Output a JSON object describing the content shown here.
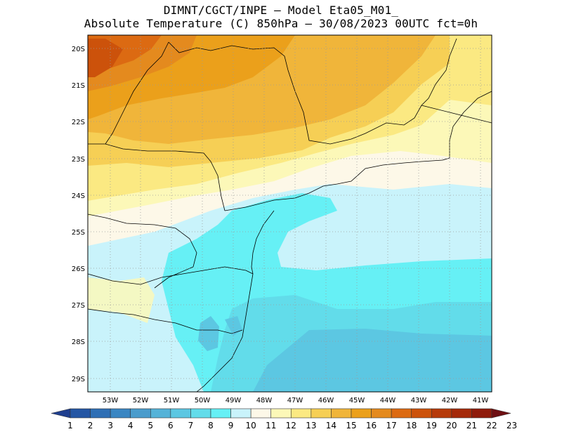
{
  "header": {
    "line1": "DIMNT/CGCT/INPE —  Model Eta05_M01_",
    "line2": "Absolute Temperature (C) 850hPa —  30/08/2023 00UTC fct=0h"
  },
  "map": {
    "lat_labels": [
      "20S",
      "21S",
      "22S",
      "23S",
      "24S",
      "25S",
      "26S",
      "27S",
      "28S",
      "29S"
    ],
    "lon_labels": [
      "53W",
      "52W",
      "51W",
      "50W",
      "49W",
      "48W",
      "47W",
      "46W",
      "45W",
      "44W",
      "43W",
      "42W",
      "41W"
    ],
    "extent": {
      "lon_min": -53.6,
      "lon_max": -40.6,
      "lat_min": -29.4,
      "lat_max": -19.7
    },
    "grid": "dotted"
  },
  "colorbar": {
    "labels": [
      "1",
      "2",
      "3",
      "4",
      "5",
      "6",
      "7",
      "8",
      "9",
      "10",
      "11",
      "12",
      "13",
      "14",
      "15",
      "16",
      "17",
      "18",
      "19",
      "20",
      "21",
      "22",
      "23"
    ],
    "colors": [
      "#1f3f8f",
      "#2456a4",
      "#2f6fb5",
      "#3a86c2",
      "#4a9ccc",
      "#55b3d8",
      "#5cc7e2",
      "#62dcea",
      "#66f0f5",
      "#c9f3fb",
      "#fdf8e8",
      "#fcf8b8",
      "#fbe982",
      "#f6cf55",
      "#f0b53a",
      "#eba01b",
      "#e48a1e",
      "#dc6a12",
      "#cc520b",
      "#b63a0a",
      "#a52a0a",
      "#8f1b0b",
      "#6e0f12"
    ]
  }
}
